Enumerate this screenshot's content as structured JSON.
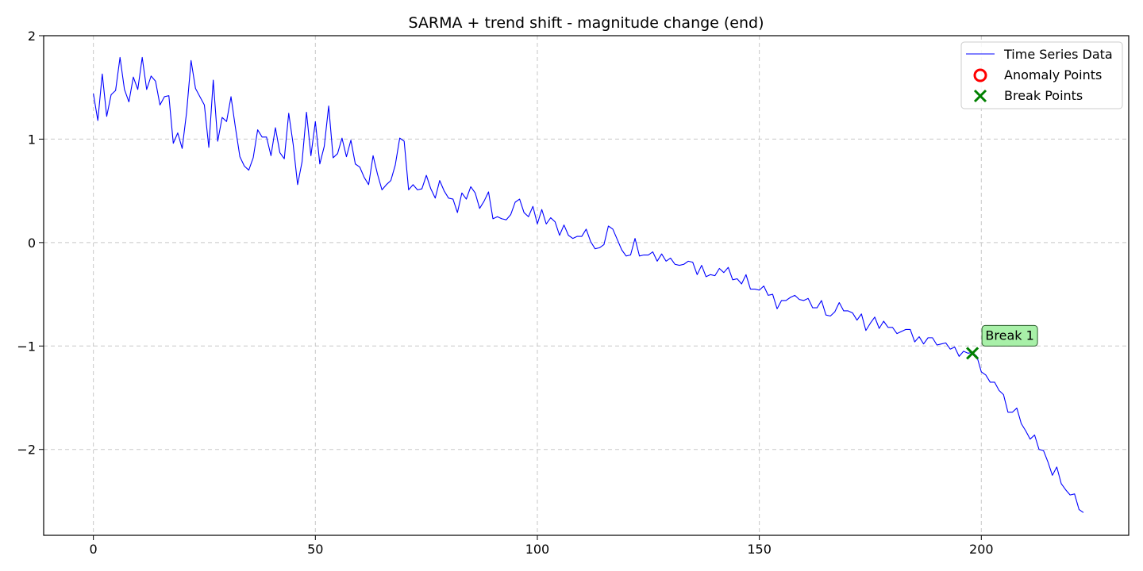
{
  "chart_data": {
    "type": "line",
    "title": "SARMA + trend shift - magnitude change (end)",
    "xlabel": "",
    "ylabel": "",
    "xlim": [
      -11.2,
      233.2
    ],
    "ylim": [
      -2.83,
      2.0
    ],
    "xticks": [
      0,
      50,
      100,
      150,
      200
    ],
    "yticks": [
      -2,
      -1,
      0,
      1,
      2
    ],
    "xtick_labels": [
      "0",
      "50",
      "100",
      "150",
      "200"
    ],
    "ytick_labels": [
      "−2",
      "−1",
      "0",
      "1",
      "2"
    ],
    "grid": true,
    "legend_position": "top-right",
    "series": [
      {
        "name": "Time Series Data",
        "color": "#0000ff",
        "x": [
          0,
          1,
          2,
          3,
          4,
          5,
          6,
          7,
          8,
          9,
          10,
          11,
          12,
          13,
          14,
          15,
          16,
          17,
          18,
          19,
          20,
          21,
          22,
          23,
          24,
          25,
          26,
          27,
          28,
          29,
          30,
          31,
          32,
          33,
          34,
          35,
          36,
          37,
          38,
          39,
          40,
          41,
          42,
          43,
          44,
          45,
          46,
          47,
          48,
          49,
          50,
          51,
          52,
          53,
          54,
          55,
          56,
          57,
          58,
          59,
          60,
          61,
          62,
          63,
          64,
          65,
          66,
          67,
          68,
          69,
          70,
          71,
          72,
          73,
          74,
          75,
          76,
          77,
          78,
          79,
          80,
          81,
          82,
          83,
          84,
          85,
          86,
          87,
          88,
          89,
          90,
          91,
          92,
          93,
          94,
          95,
          96,
          97,
          98,
          99,
          100,
          101,
          102,
          103,
          104,
          105,
          106,
          107,
          108,
          109,
          110,
          111,
          112,
          113,
          114,
          115,
          116,
          117,
          118,
          119,
          120,
          121,
          122,
          123,
          124,
          125,
          126,
          127,
          128,
          129,
          130,
          131,
          132,
          133,
          134,
          135,
          136,
          137,
          138,
          139,
          140,
          141,
          142,
          143,
          144,
          145,
          146,
          147,
          148,
          149,
          150,
          151,
          152,
          153,
          154,
          155,
          156,
          157,
          158,
          159,
          160,
          161,
          162,
          163,
          164,
          165,
          166,
          167,
          168,
          169,
          170,
          171,
          172,
          173,
          174,
          175,
          176,
          177,
          178,
          179,
          180,
          181,
          182,
          183,
          184,
          185,
          186,
          187,
          188,
          189,
          190,
          191,
          192,
          193,
          194,
          195,
          196,
          197,
          198,
          199,
          200,
          201,
          202,
          203,
          204,
          205,
          206,
          207,
          208,
          209,
          210,
          211,
          212,
          213,
          214,
          215,
          216,
          217,
          218,
          219,
          220,
          221,
          222,
          223
        ],
        "y": [
          1.44,
          1.18,
          1.63,
          1.22,
          1.43,
          1.47,
          1.79,
          1.48,
          1.36,
          1.6,
          1.48,
          1.79,
          1.48,
          1.61,
          1.56,
          1.33,
          1.41,
          1.42,
          0.96,
          1.06,
          0.91,
          1.26,
          1.76,
          1.49,
          1.41,
          1.33,
          0.92,
          1.57,
          0.98,
          1.21,
          1.17,
          1.41,
          1.11,
          0.83,
          0.74,
          0.7,
          0.82,
          1.09,
          1.02,
          1.02,
          0.84,
          1.11,
          0.87,
          0.81,
          1.25,
          0.95,
          0.56,
          0.78,
          1.26,
          0.84,
          1.17,
          0.76,
          0.93,
          1.32,
          0.82,
          0.86,
          1.01,
          0.83,
          0.99,
          0.76,
          0.73,
          0.63,
          0.56,
          0.84,
          0.66,
          0.51,
          0.56,
          0.6,
          0.75,
          1.01,
          0.98,
          0.51,
          0.56,
          0.51,
          0.52,
          0.65,
          0.52,
          0.43,
          0.6,
          0.5,
          0.43,
          0.42,
          0.29,
          0.48,
          0.42,
          0.54,
          0.48,
          0.33,
          0.4,
          0.49,
          0.23,
          0.25,
          0.23,
          0.22,
          0.27,
          0.39,
          0.42,
          0.29,
          0.25,
          0.35,
          0.18,
          0.32,
          0.18,
          0.24,
          0.2,
          0.07,
          0.17,
          0.07,
          0.04,
          0.06,
          0.06,
          0.13,
          0.01,
          -0.06,
          -0.05,
          -0.02,
          0.16,
          0.13,
          0.03,
          -0.07,
          -0.13,
          -0.12,
          0.04,
          -0.13,
          -0.12,
          -0.12,
          -0.09,
          -0.18,
          -0.11,
          -0.18,
          -0.15,
          -0.21,
          -0.22,
          -0.21,
          -0.18,
          -0.19,
          -0.31,
          -0.22,
          -0.33,
          -0.31,
          -0.32,
          -0.25,
          -0.29,
          -0.24,
          -0.36,
          -0.35,
          -0.4,
          -0.31,
          -0.45,
          -0.45,
          -0.46,
          -0.42,
          -0.51,
          -0.5,
          -0.64,
          -0.56,
          -0.56,
          -0.53,
          -0.51,
          -0.55,
          -0.56,
          -0.54,
          -0.63,
          -0.63,
          -0.56,
          -0.7,
          -0.71,
          -0.67,
          -0.58,
          -0.66,
          -0.66,
          -0.68,
          -0.75,
          -0.69,
          -0.85,
          -0.78,
          -0.72,
          -0.83,
          -0.76,
          -0.82,
          -0.82,
          -0.88,
          -0.86,
          -0.84,
          -0.84,
          -0.96,
          -0.91,
          -0.98,
          -0.92,
          -0.92,
          -0.99,
          -0.98,
          -0.97,
          -1.03,
          -1.01,
          -1.1,
          -1.05,
          -1.07,
          -1.06,
          -1.1,
          -1.25,
          -1.28,
          -1.35,
          -1.35,
          -1.43,
          -1.47,
          -1.64,
          -1.64,
          -1.6,
          -1.75,
          -1.82,
          -1.9,
          -1.86,
          -2.0,
          -2.01,
          -2.12,
          -2.25,
          -2.17,
          -2.33,
          -2.39,
          -2.44,
          -2.43,
          -2.58,
          -2.61
        ]
      }
    ],
    "anomaly_points": {
      "name": "Anomaly Points",
      "color": "#ff0000",
      "points": []
    },
    "break_points": {
      "name": "Break Points",
      "color": "#008000",
      "points": [
        {
          "x": 198,
          "y": -1.07,
          "label": "Break 1"
        }
      ]
    },
    "annotation_style": {
      "box_fill": "#a8f0a8",
      "box_stroke": "#2e5e2e"
    }
  }
}
